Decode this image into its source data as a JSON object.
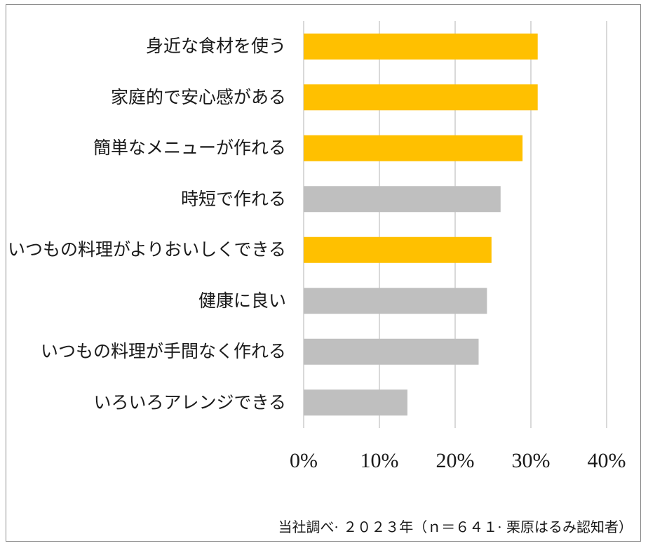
{
  "chart_data": {
    "type": "bar",
    "orientation": "horizontal",
    "categories": [
      "身近な食材を使う",
      "家庭的で安心感がある",
      "簡単なメニューが作れる",
      "時短で作れる",
      "いつもの料理がよりおいしくできる",
      "健康に良い",
      "いつもの料理が手間なく作れる",
      "いろいろアレンジできる"
    ],
    "values": [
      30.9,
      30.9,
      28.9,
      26.0,
      24.8,
      24.2,
      23.1,
      13.7
    ],
    "highlighted": [
      true,
      true,
      true,
      false,
      true,
      false,
      false,
      false
    ],
    "xlim": [
      0,
      40
    ],
    "xticks": [
      "0%",
      "10%",
      "20%",
      "30%",
      "40%"
    ],
    "grid": true,
    "colors": {
      "highlight": "#FFC000",
      "normal": "#BFBFBF",
      "grid": "#D9D9D9"
    },
    "source": "当社調べ· ２０２３年（ｎ＝６４１· 栗原はるみ認知者）"
  }
}
